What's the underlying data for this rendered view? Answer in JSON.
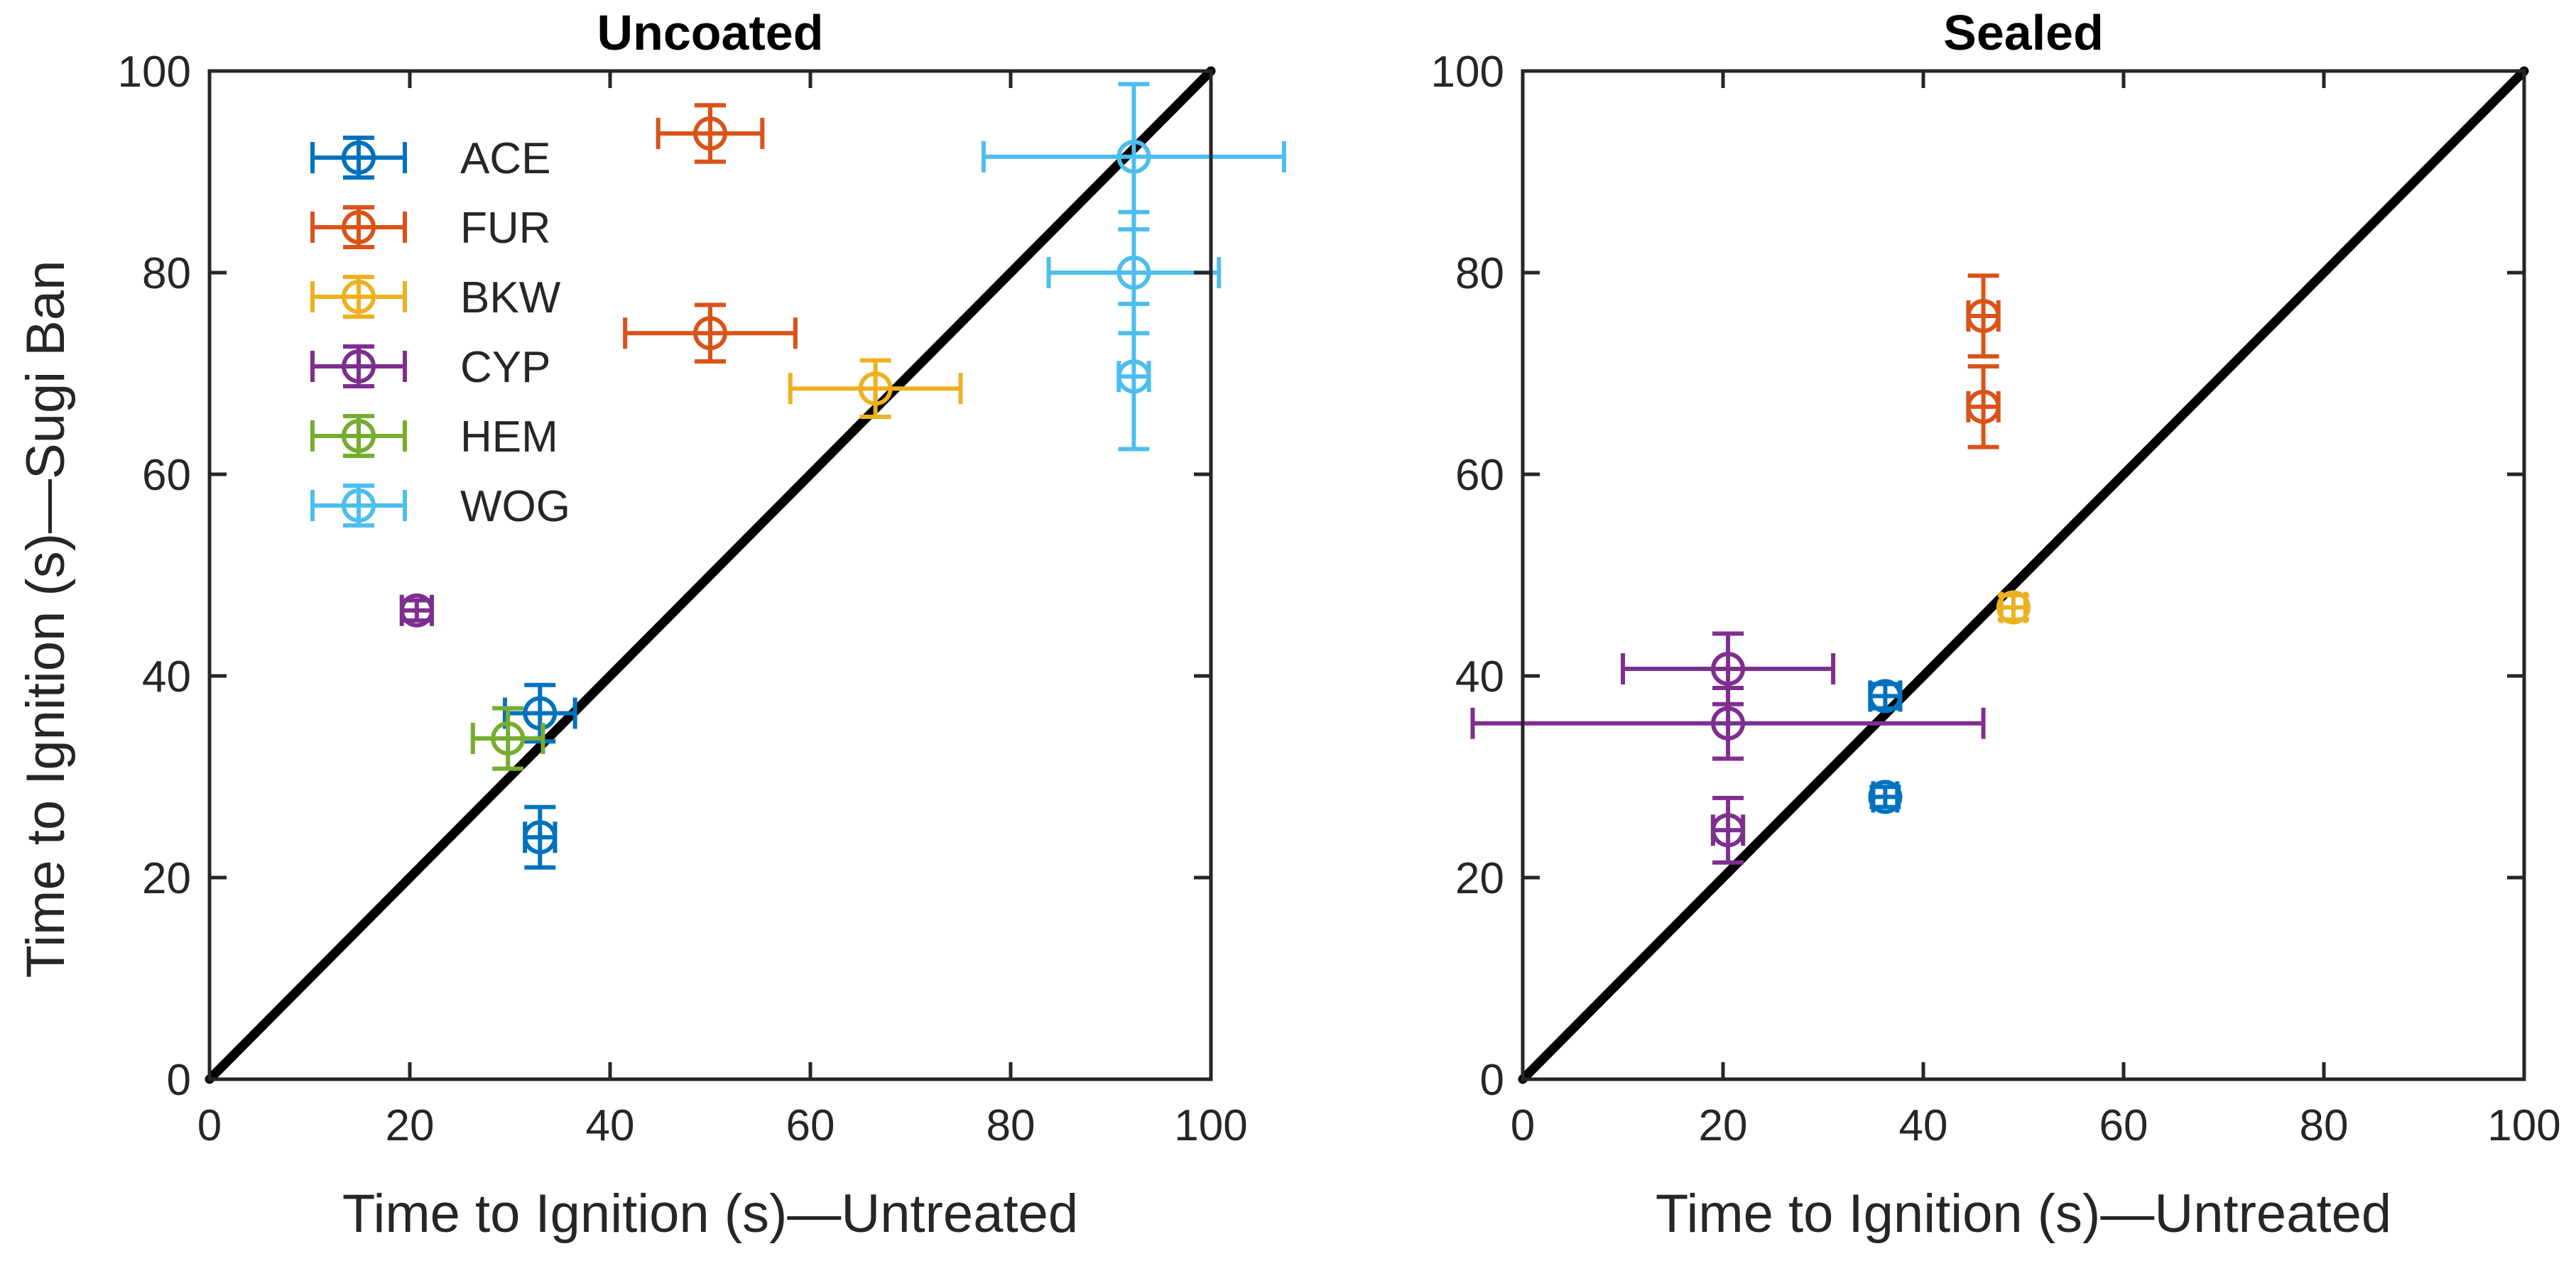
{
  "chart_data": [
    {
      "type": "scatter",
      "title": "Uncoated",
      "xlabel": "Time to Ignition (s)—Untreated",
      "ylabel": "Time to Ignition (s)—Sugi Ban",
      "xlim": [
        0,
        100
      ],
      "ylim": [
        0,
        100
      ],
      "xticks": [
        "0",
        "20",
        "40",
        "60",
        "80",
        "100"
      ],
      "yticks": [
        "0",
        "20",
        "40",
        "60",
        "80",
        "100"
      ],
      "reference_line": {
        "x": [
          0,
          100
        ],
        "y": [
          0,
          100
        ],
        "color": "#000000"
      },
      "legend": {
        "location": "top-left",
        "entries": [
          "ACE",
          "FUR",
          "BKW",
          "CYP",
          "HEM",
          "WOG"
        ]
      },
      "series": [
        {
          "name": "ACE",
          "color": "#0072BD",
          "points": [
            {
              "x": 33,
              "y": 36.3,
              "xerr": 3.5,
              "yerr": 2.8
            },
            {
              "x": 33,
              "y": 24,
              "xerr": 1.5,
              "yerr": 3
            }
          ]
        },
        {
          "name": "FUR",
          "color": "#D95319",
          "points": [
            {
              "x": 50,
              "y": 93.8,
              "xerr": 5.2,
              "yerr": 2.8
            },
            {
              "x": 50,
              "y": 74,
              "xerr": 8.5,
              "yerr": 2.8
            }
          ]
        },
        {
          "name": "BKW",
          "color": "#EDB120",
          "points": [
            {
              "x": 66.5,
              "y": 68.5,
              "xerr": 8.5,
              "yerr": 2.8
            }
          ]
        },
        {
          "name": "CYP",
          "color": "#7E2F8E",
          "points": [
            {
              "x": 20.7,
              "y": 46.5,
              "xerr": 1.5,
              "yerr": 1
            }
          ]
        },
        {
          "name": "HEM",
          "color": "#77AC30",
          "points": [
            {
              "x": 29.8,
              "y": 33.8,
              "xerr": 3.5,
              "yerr": 3
            }
          ]
        },
        {
          "name": "WOG",
          "color": "#4DBEEE",
          "points": [
            {
              "x": 92.3,
              "y": 91.5,
              "xerr": 15,
              "yerr": 7.2
            },
            {
              "x": 92.3,
              "y": 80,
              "xerr": 8.5,
              "yerr": 6
            },
            {
              "x": 92.3,
              "y": 69.7,
              "xerr": 1.5,
              "yerr": 7.2
            }
          ]
        }
      ]
    },
    {
      "type": "scatter",
      "title": "Sealed",
      "xlabel": "Time to Ignition (s)—Untreated",
      "ylabel": "",
      "xlim": [
        0,
        100
      ],
      "ylim": [
        0,
        100
      ],
      "xticks": [
        "0",
        "20",
        "40",
        "60",
        "80",
        "100"
      ],
      "yticks": [
        "0",
        "20",
        "40",
        "60",
        "80",
        "100"
      ],
      "reference_line": {
        "x": [
          0,
          100
        ],
        "y": [
          0,
          100
        ],
        "color": "#000000"
      },
      "series": [
        {
          "name": "ACE",
          "color": "#0072BD",
          "points": [
            {
              "x": 36.2,
              "y": 38,
              "xerr": 1.5,
              "yerr": 1.2
            },
            {
              "x": 36.2,
              "y": 28,
              "xerr": 1.2,
              "yerr": 1
            }
          ]
        },
        {
          "name": "FUR",
          "color": "#D95319",
          "points": [
            {
              "x": 46,
              "y": 75.7,
              "xerr": 1.5,
              "yerr": 4
            },
            {
              "x": 46,
              "y": 66.7,
              "xerr": 1.5,
              "yerr": 4
            }
          ]
        },
        {
          "name": "BKW",
          "color": "#EDB120",
          "points": [
            {
              "x": 49,
              "y": 46.8,
              "xerr": 1.2,
              "yerr": 1.2
            }
          ]
        },
        {
          "name": "CYP",
          "color": "#7E2F8E",
          "points": [
            {
              "x": 20.5,
              "y": 40.7,
              "xerr": 10.5,
              "yerr": 3.5
            },
            {
              "x": 20.5,
              "y": 35.3,
              "xerr": 25.5,
              "yerr": 3.5
            },
            {
              "x": 20.5,
              "y": 24.7,
              "xerr": 1.5,
              "yerr": 3.2
            }
          ]
        }
      ]
    }
  ]
}
